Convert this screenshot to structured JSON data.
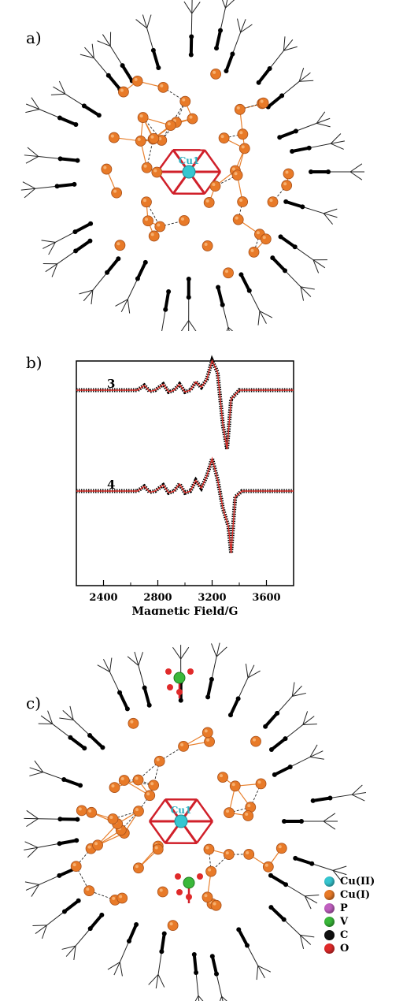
{
  "panels": {
    "a": {
      "label": "a)",
      "atom_label": "Cu1"
    },
    "b": {
      "label": "b)"
    },
    "c": {
      "label": "c)",
      "atom_label": "Cu1"
    }
  },
  "chart_data": {
    "type": "line",
    "title": "",
    "xlabel": "Magnetic Field/G",
    "ylabel": "",
    "xlim": [
      2200,
      3800
    ],
    "x_ticks": [
      "2400",
      "2800",
      "3200",
      "3600"
    ],
    "x_tick_values": [
      2400,
      2800,
      3200,
      3600
    ],
    "grid": false,
    "series": [
      {
        "name": "3",
        "colors": [
          "#000000",
          "#e0302a"
        ],
        "x": [
          2200,
          2650,
          2700,
          2740,
          2780,
          2840,
          2880,
          2920,
          2960,
          3000,
          3040,
          3080,
          3120,
          3160,
          3200,
          3240,
          3280,
          3310,
          3340,
          3400,
          3800
        ],
        "y": [
          0,
          0,
          0.08,
          -0.02,
          0,
          0.1,
          -0.03,
          0,
          0.1,
          -0.03,
          0,
          0.14,
          0.05,
          0.18,
          0.5,
          0.3,
          -0.6,
          -1.0,
          -0.15,
          0,
          0
        ]
      },
      {
        "name": "4",
        "colors": [
          "#000000",
          "#e0302a"
        ],
        "x": [
          2200,
          2650,
          2700,
          2740,
          2780,
          2840,
          2880,
          2920,
          2960,
          3000,
          3040,
          3080,
          3120,
          3160,
          3200,
          3240,
          3280,
          3320,
          3340,
          3370,
          3420,
          3800
        ],
        "y": [
          0,
          0,
          0.08,
          -0.02,
          0,
          0.1,
          -0.03,
          0,
          0.12,
          -0.03,
          0,
          0.18,
          0.05,
          0.25,
          0.55,
          0.2,
          -0.3,
          -0.6,
          -1.05,
          -0.1,
          0,
          0
        ]
      }
    ]
  },
  "legend": [
    {
      "label": "Cu(II)",
      "color": "#36c6d0"
    },
    {
      "label": "Cu(I)",
      "color": "#e87a28"
    },
    {
      "label": "P",
      "color": "#c060c0"
    },
    {
      "label": "V",
      "color": "#3ab83a"
    },
    {
      "label": "C",
      "color": "#111111"
    },
    {
      "label": "O",
      "color": "#e02a2a"
    }
  ]
}
